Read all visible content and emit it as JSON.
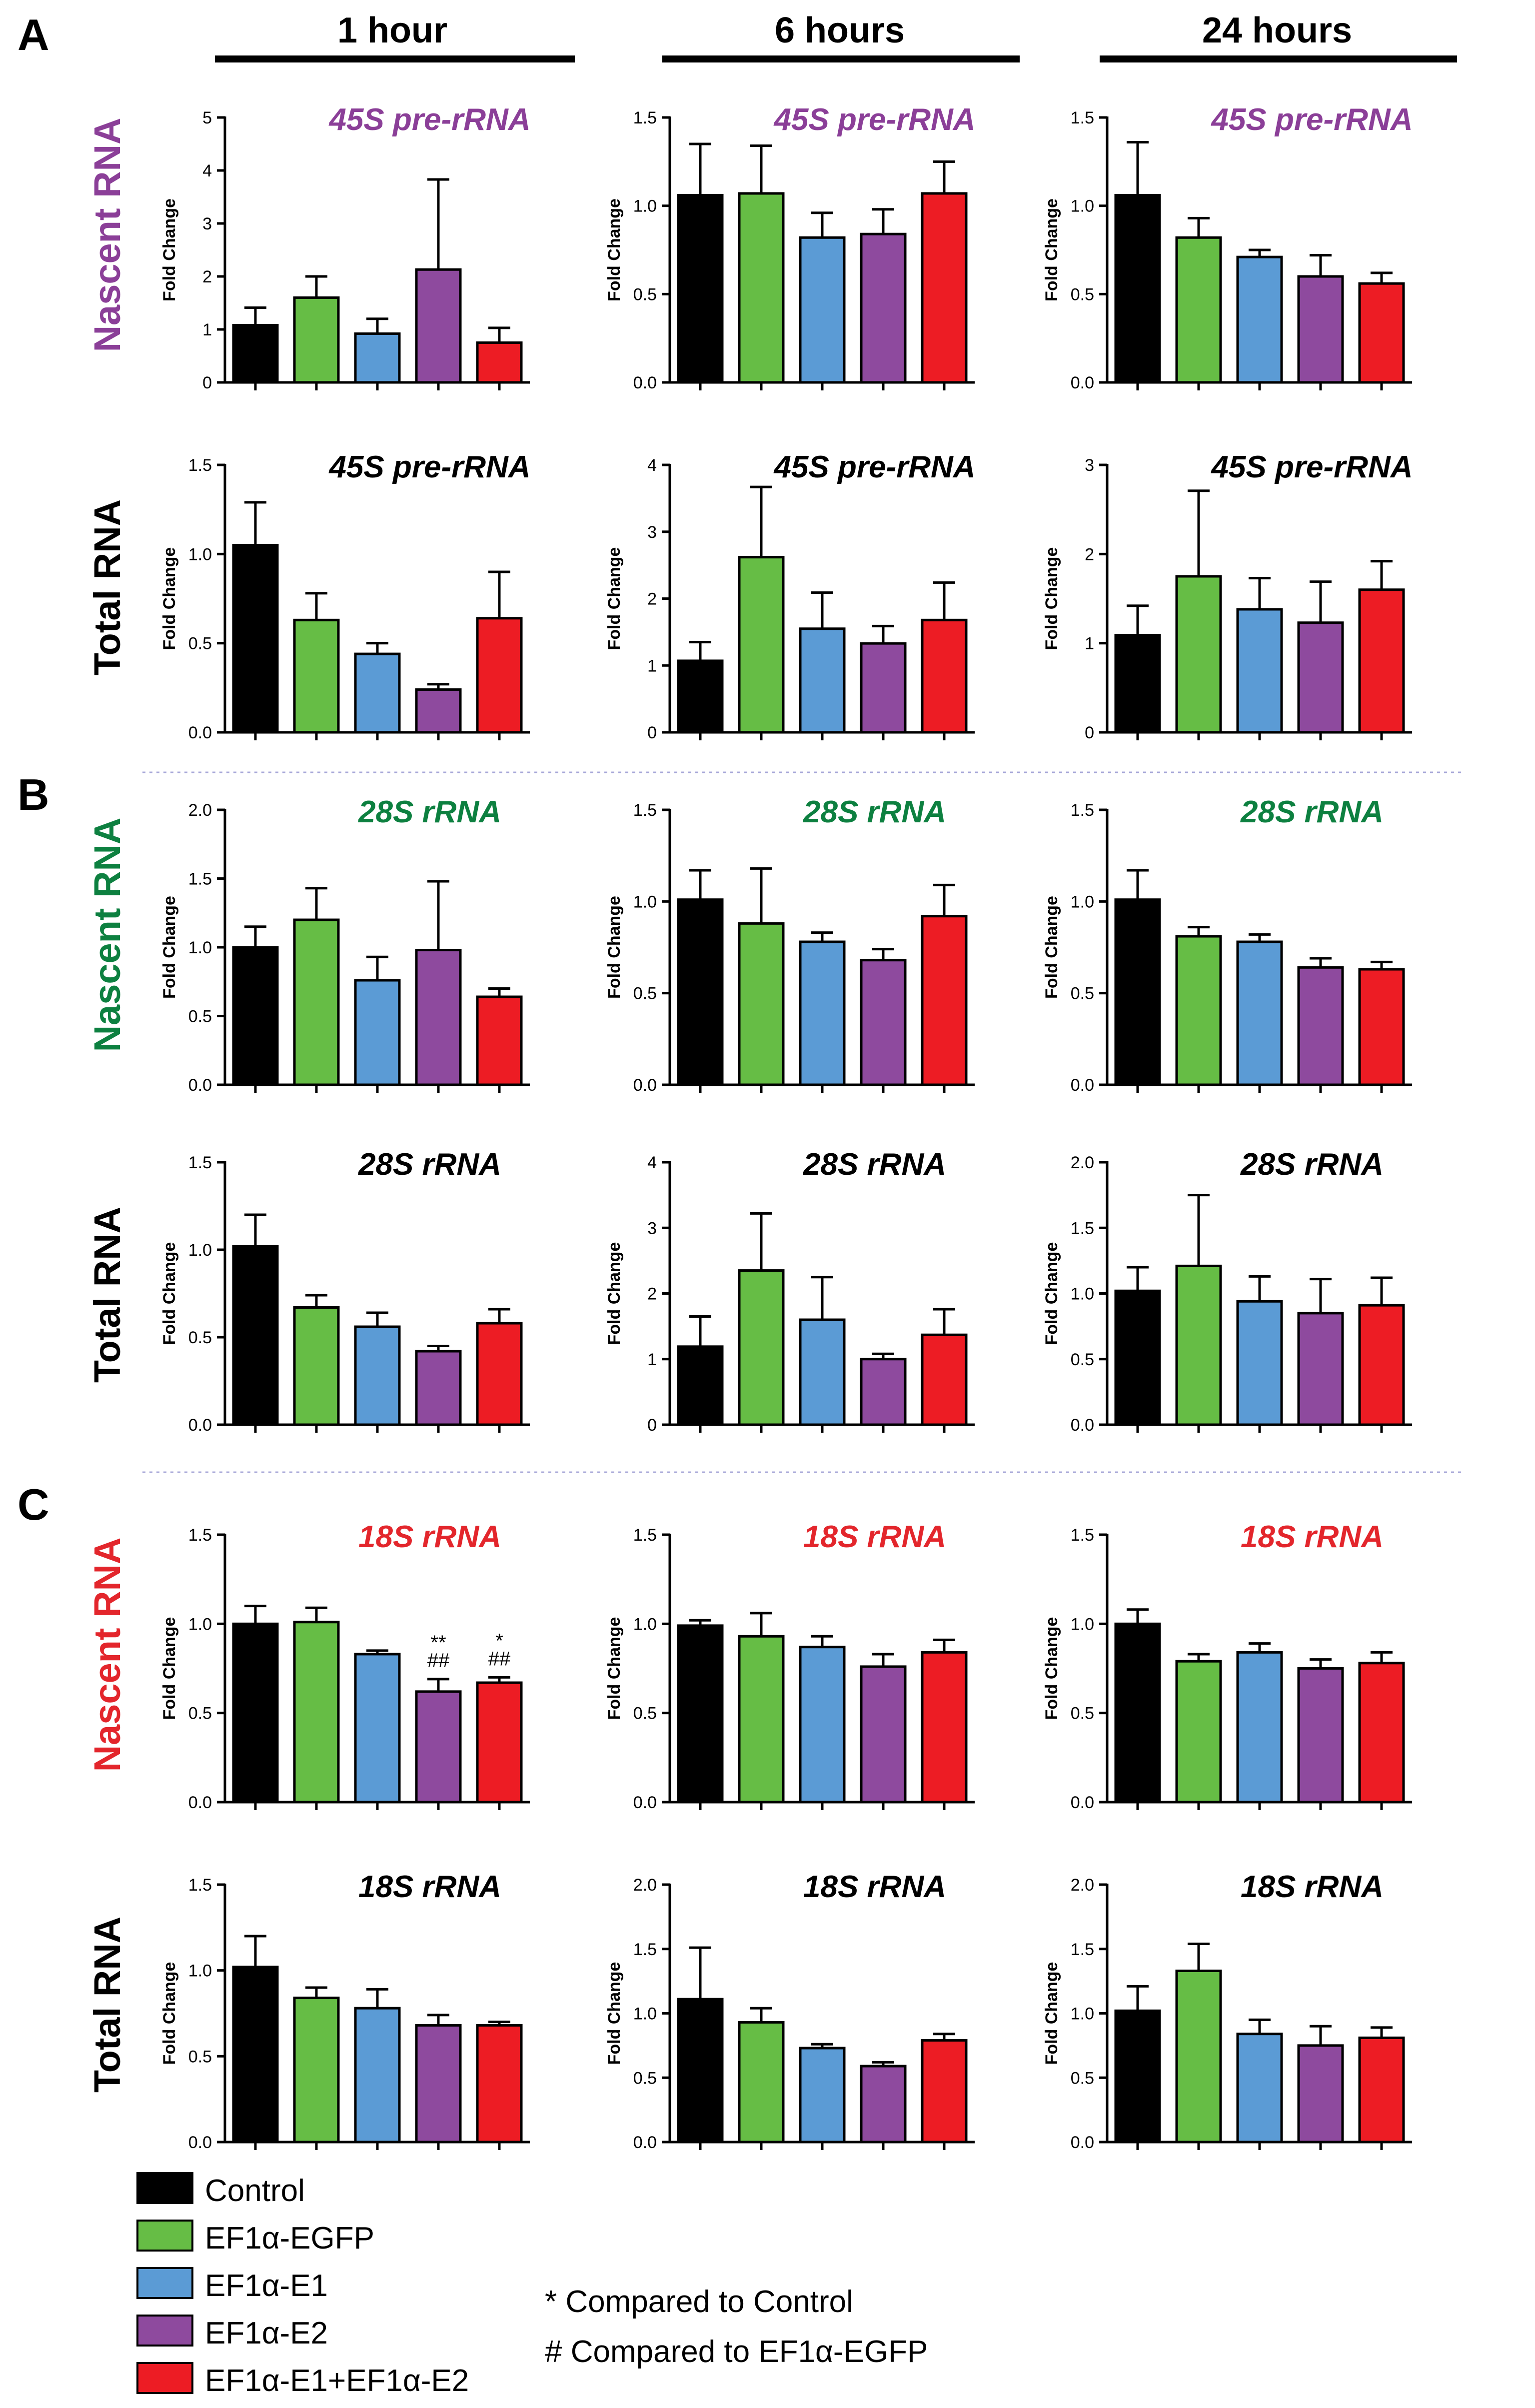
{
  "panel_letters": [
    "A",
    "B",
    "C"
  ],
  "time_headers": [
    "1 hour",
    "6 hours",
    "24 hours"
  ],
  "row_labels": [
    {
      "text": "Nascent RNA",
      "color": "#8b3f98"
    },
    {
      "text": "Total RNA",
      "color": "#000000"
    },
    {
      "text": "Nascent RNA",
      "color": "#0d8040"
    },
    {
      "text": "Total RNA",
      "color": "#000000"
    },
    {
      "text": "Nascent RNA",
      "color": "#e3262c"
    },
    {
      "text": "Total RNA",
      "color": "#000000"
    }
  ],
  "colors": {
    "Control": "#000000",
    "EF1a-EGFP": "#66bd45",
    "EF1a-E1": "#5b9bd5",
    "EF1a-E2": "#8e4a9e",
    "EF1a-E1+EF1a-E2": "#ed1c24",
    "divider": "#a8a8d8"
  },
  "legend": {
    "items": [
      {
        "label": "Control",
        "color": "#000000"
      },
      {
        "label": "EF1α-EGFP",
        "color": "#66bd45"
      },
      {
        "label": "EF1α-E1",
        "color": "#5b9bd5"
      },
      {
        "label": "EF1α-E2",
        "color": "#8e4a9e"
      },
      {
        "label": "EF1α-E1+EF1α-E2",
        "color": "#ed1c24"
      }
    ],
    "notes": [
      "*  Compared to Control",
      "#  Compared to EF1α-EGFP"
    ]
  },
  "chart_data": [
    {
      "type": "bar",
      "row": 0,
      "col": 0,
      "title": "45S pre-rRNA",
      "title_color": "#8b3f98",
      "ylabel": "Fold Change",
      "ylim": [
        0,
        5
      ],
      "yticks": [
        "0",
        "1",
        "2",
        "3",
        "4",
        "5"
      ],
      "categories": [
        "Control",
        "EF1α-EGFP",
        "EF1α-E1",
        "EF1α-E2",
        "EF1α-E1+EF1α-E2"
      ],
      "values": [
        1.08,
        1.6,
        0.92,
        2.13,
        0.75
      ],
      "errors": [
        0.33,
        0.4,
        0.28,
        1.7,
        0.28
      ]
    },
    {
      "type": "bar",
      "row": 0,
      "col": 1,
      "title": "45S pre-rRNA",
      "title_color": "#8b3f98",
      "ylabel": "Fold Change",
      "ylim": [
        0,
        1.5
      ],
      "yticks": [
        "0.0",
        "0.5",
        "1.0",
        "1.5"
      ],
      "categories": [
        "Control",
        "EF1α-EGFP",
        "EF1α-E1",
        "EF1α-E2",
        "EF1α-E1+EF1α-E2"
      ],
      "values": [
        1.06,
        1.07,
        0.82,
        0.84,
        1.07
      ],
      "errors": [
        0.29,
        0.27,
        0.14,
        0.14,
        0.18
      ]
    },
    {
      "type": "bar",
      "row": 0,
      "col": 2,
      "title": "45S pre-rRNA",
      "title_color": "#8b3f98",
      "ylabel": "Fold Change",
      "ylim": [
        0,
        1.5
      ],
      "yticks": [
        "0.0",
        "0.5",
        "1.0",
        "1.5"
      ],
      "categories": [
        "Control",
        "EF1α-EGFP",
        "EF1α-E1",
        "EF1α-E2",
        "EF1α-E1+EF1α-E2"
      ],
      "values": [
        1.06,
        0.82,
        0.71,
        0.6,
        0.56
      ],
      "errors": [
        0.3,
        0.11,
        0.04,
        0.12,
        0.06
      ]
    },
    {
      "type": "bar",
      "row": 1,
      "col": 0,
      "title": "45S pre-rRNA",
      "title_color": "#000000",
      "ylabel": "Fold Change",
      "ylim": [
        0,
        1.5
      ],
      "yticks": [
        "0.0",
        "0.5",
        "1.0",
        "1.5"
      ],
      "categories": [
        "Control",
        "EF1α-EGFP",
        "EF1α-E1",
        "EF1α-E2",
        "EF1α-E1+EF1α-E2"
      ],
      "values": [
        1.05,
        0.63,
        0.44,
        0.24,
        0.64
      ],
      "errors": [
        0.24,
        0.15,
        0.06,
        0.03,
        0.26
      ]
    },
    {
      "type": "bar",
      "row": 1,
      "col": 1,
      "title": "45S pre-rRNA",
      "title_color": "#000000",
      "ylabel": "Fold Change",
      "ylim": [
        0,
        4
      ],
      "yticks": [
        "0",
        "1",
        "2",
        "3",
        "4"
      ],
      "categories": [
        "Control",
        "EF1α-EGFP",
        "EF1α-E1",
        "EF1α-E2",
        "EF1α-E1+EF1α-E2"
      ],
      "values": [
        1.07,
        2.62,
        1.55,
        1.33,
        1.68
      ],
      "errors": [
        0.28,
        1.05,
        0.54,
        0.26,
        0.56
      ]
    },
    {
      "type": "bar",
      "row": 1,
      "col": 2,
      "title": "45S pre-rRNA",
      "title_color": "#000000",
      "ylabel": "Fold Change",
      "ylim": [
        0,
        3
      ],
      "yticks": [
        "0",
        "1",
        "2",
        "3"
      ],
      "categories": [
        "Control",
        "EF1α-EGFP",
        "EF1α-E1",
        "EF1α-E2",
        "EF1α-E1+EF1α-E2"
      ],
      "values": [
        1.09,
        1.75,
        1.38,
        1.23,
        1.6
      ],
      "errors": [
        0.33,
        0.96,
        0.35,
        0.46,
        0.32
      ]
    },
    {
      "type": "bar",
      "row": 2,
      "col": 0,
      "title": "28S rRNA",
      "title_color": "#0d8040",
      "ylabel": "Fold Change",
      "ylim": [
        0,
        2
      ],
      "yticks": [
        "0.0",
        "0.5",
        "1.0",
        "1.5",
        "2.0"
      ],
      "categories": [
        "Control",
        "EF1α-EGFP",
        "EF1α-E1",
        "EF1α-E2",
        "EF1α-E1+EF1α-E2"
      ],
      "values": [
        1.0,
        1.2,
        0.76,
        0.98,
        0.64
      ],
      "errors": [
        0.15,
        0.23,
        0.17,
        0.5,
        0.06
      ]
    },
    {
      "type": "bar",
      "row": 2,
      "col": 1,
      "title": "28S rRNA",
      "title_color": "#0d8040",
      "ylabel": "Fold Change",
      "ylim": [
        0,
        1.5
      ],
      "yticks": [
        "0.0",
        "0.5",
        "1.0",
        "1.5"
      ],
      "categories": [
        "Control",
        "EF1α-EGFP",
        "EF1α-E1",
        "EF1α-E2",
        "EF1α-E1+EF1α-E2"
      ],
      "values": [
        1.01,
        0.88,
        0.78,
        0.68,
        0.92
      ],
      "errors": [
        0.16,
        0.3,
        0.05,
        0.06,
        0.17
      ]
    },
    {
      "type": "bar",
      "row": 2,
      "col": 2,
      "title": "28S rRNA",
      "title_color": "#0d8040",
      "ylabel": "Fold Change",
      "ylim": [
        0,
        1.5
      ],
      "yticks": [
        "0.0",
        "0.5",
        "1.0",
        "1.5"
      ],
      "categories": [
        "Control",
        "EF1α-EGFP",
        "EF1α-E1",
        "EF1α-E2",
        "EF1α-E1+EF1α-E2"
      ],
      "values": [
        1.01,
        0.81,
        0.78,
        0.64,
        0.63
      ],
      "errors": [
        0.16,
        0.05,
        0.04,
        0.05,
        0.04
      ]
    },
    {
      "type": "bar",
      "row": 3,
      "col": 0,
      "title": "28S rRNA",
      "title_color": "#000000",
      "ylabel": "Fold Change",
      "ylim": [
        0,
        1.5
      ],
      "yticks": [
        "0.0",
        "0.5",
        "1.0",
        "1.5"
      ],
      "categories": [
        "Control",
        "EF1α-EGFP",
        "EF1α-E1",
        "EF1α-E2",
        "EF1α-E1+EF1α-E2"
      ],
      "values": [
        1.02,
        0.67,
        0.56,
        0.42,
        0.58
      ],
      "errors": [
        0.18,
        0.07,
        0.08,
        0.03,
        0.08
      ]
    },
    {
      "type": "bar",
      "row": 3,
      "col": 1,
      "title": "28S rRNA",
      "title_color": "#000000",
      "ylabel": "Fold Change",
      "ylim": [
        0,
        4
      ],
      "yticks": [
        "0",
        "1",
        "2",
        "3",
        "4"
      ],
      "categories": [
        "Control",
        "EF1α-EGFP",
        "EF1α-E1",
        "EF1α-E2",
        "EF1α-E1+EF1α-E2"
      ],
      "values": [
        1.19,
        2.35,
        1.6,
        1.0,
        1.37
      ],
      "errors": [
        0.46,
        0.87,
        0.65,
        0.08,
        0.39
      ]
    },
    {
      "type": "bar",
      "row": 3,
      "col": 2,
      "title": "28S rRNA",
      "title_color": "#000000",
      "ylabel": "Fold Change",
      "ylim": [
        0,
        2
      ],
      "yticks": [
        "0.0",
        "0.5",
        "1.0",
        "1.5",
        "2.0"
      ],
      "categories": [
        "Control",
        "EF1α-EGFP",
        "EF1α-E1",
        "EF1α-E2",
        "EF1α-E1+EF1α-E2"
      ],
      "values": [
        1.02,
        1.21,
        0.94,
        0.85,
        0.91
      ],
      "errors": [
        0.18,
        0.54,
        0.19,
        0.26,
        0.21
      ]
    },
    {
      "type": "bar",
      "row": 4,
      "col": 0,
      "title": "18S rRNA",
      "title_color": "#e3262c",
      "ylabel": "Fold Change",
      "ylim": [
        0,
        1.5
      ],
      "yticks": [
        "0.0",
        "0.5",
        "1.0",
        "1.5"
      ],
      "categories": [
        "Control",
        "EF1α-EGFP",
        "EF1α-E1",
        "EF1α-E2",
        "EF1α-E1+EF1α-E2"
      ],
      "values": [
        1.0,
        1.01,
        0.83,
        0.62,
        0.67
      ],
      "errors": [
        0.1,
        0.08,
        0.02,
        0.07,
        0.03
      ],
      "annotations": [
        {
          "bar": 3,
          "lines": [
            "**",
            "##"
          ]
        },
        {
          "bar": 4,
          "lines": [
            "*",
            "##"
          ]
        }
      ]
    },
    {
      "type": "bar",
      "row": 4,
      "col": 1,
      "title": "18S rRNA",
      "title_color": "#e3262c",
      "ylabel": "Fold Change",
      "ylim": [
        0,
        1.5
      ],
      "yticks": [
        "0.0",
        "0.5",
        "1.0",
        "1.5"
      ],
      "categories": [
        "Control",
        "EF1α-EGFP",
        "EF1α-E1",
        "EF1α-E2",
        "EF1α-E1+EF1α-E2"
      ],
      "values": [
        0.99,
        0.93,
        0.87,
        0.76,
        0.84
      ],
      "errors": [
        0.03,
        0.13,
        0.06,
        0.07,
        0.07
      ]
    },
    {
      "type": "bar",
      "row": 4,
      "col": 2,
      "title": "18S rRNA",
      "title_color": "#e3262c",
      "ylabel": "Fold Change",
      "ylim": [
        0,
        1.5
      ],
      "yticks": [
        "0.0",
        "0.5",
        "1.0",
        "1.5"
      ],
      "categories": [
        "Control",
        "EF1α-EGFP",
        "EF1α-E1",
        "EF1α-E2",
        "EF1α-E1+EF1α-E2"
      ],
      "values": [
        1.0,
        0.79,
        0.84,
        0.75,
        0.78
      ],
      "errors": [
        0.08,
        0.04,
        0.05,
        0.05,
        0.06
      ]
    },
    {
      "type": "bar",
      "row": 5,
      "col": 0,
      "title": "18S rRNA",
      "title_color": "#000000",
      "ylabel": "Fold Change",
      "ylim": [
        0,
        1.5
      ],
      "yticks": [
        "0.0",
        "0.5",
        "1.0",
        "1.5"
      ],
      "categories": [
        "Control",
        "EF1α-EGFP",
        "EF1α-E1",
        "EF1α-E2",
        "EF1α-E1+EF1α-E2"
      ],
      "values": [
        1.02,
        0.84,
        0.78,
        0.68,
        0.68
      ],
      "errors": [
        0.18,
        0.06,
        0.11,
        0.06,
        0.02
      ]
    },
    {
      "type": "bar",
      "row": 5,
      "col": 1,
      "title": "18S rRNA",
      "title_color": "#000000",
      "ylabel": "Fold Change",
      "ylim": [
        0,
        2
      ],
      "yticks": [
        "0.0",
        "0.5",
        "1.0",
        "1.5",
        "2.0"
      ],
      "categories": [
        "Control",
        "EF1α-EGFP",
        "EF1α-E1",
        "EF1α-E2",
        "EF1α-E1+EF1α-E2"
      ],
      "values": [
        1.11,
        0.93,
        0.73,
        0.59,
        0.79
      ],
      "errors": [
        0.4,
        0.11,
        0.03,
        0.03,
        0.05
      ]
    },
    {
      "type": "bar",
      "row": 5,
      "col": 2,
      "title": "18S rRNA",
      "title_color": "#000000",
      "ylabel": "Fold Change",
      "ylim": [
        0,
        2
      ],
      "yticks": [
        "0.0",
        "0.5",
        "1.0",
        "1.5",
        "2.0"
      ],
      "categories": [
        "Control",
        "EF1α-EGFP",
        "EF1α-E1",
        "EF1α-E2",
        "EF1α-E1+EF1α-E2"
      ],
      "values": [
        1.02,
        1.33,
        0.84,
        0.75,
        0.81
      ],
      "errors": [
        0.19,
        0.21,
        0.11,
        0.15,
        0.08
      ]
    }
  ]
}
